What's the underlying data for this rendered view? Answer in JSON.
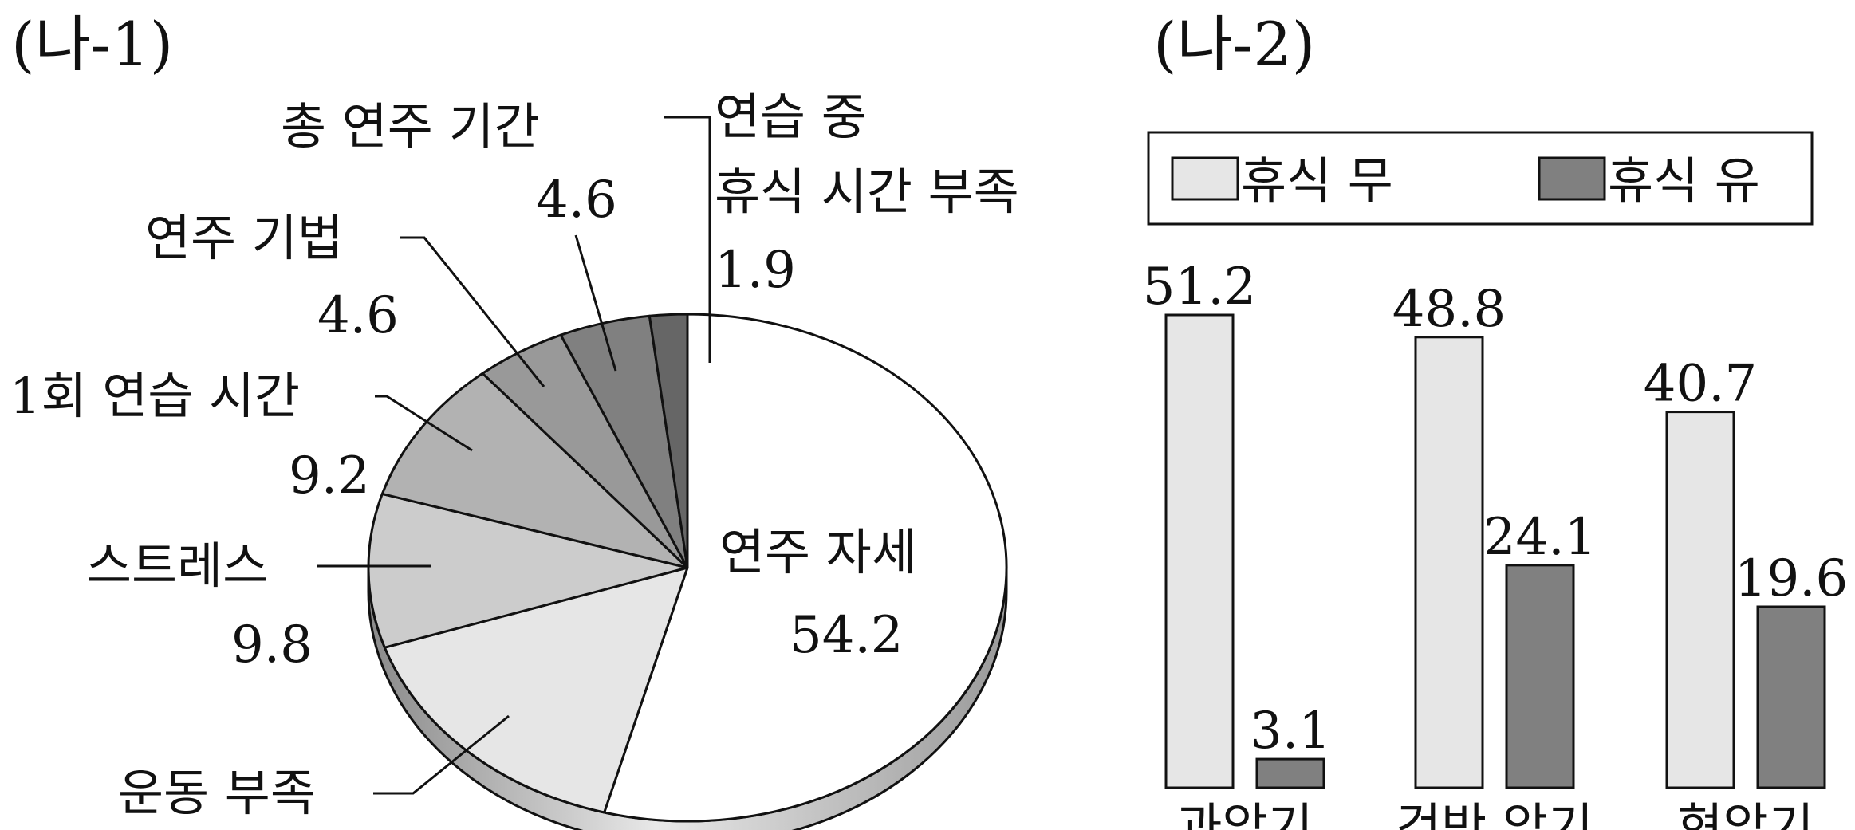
{
  "chart_data": [
    {
      "type": "pie",
      "title": "(나-1)",
      "slices": [
        {
          "label": "연주 자세",
          "value": 54.2,
          "color": "#ffffff"
        },
        {
          "label": "운동 부족",
          "value": 15.7,
          "color": "#e6e6e6"
        },
        {
          "label": "스트레스",
          "value": 9.8,
          "color": "#cccccc"
        },
        {
          "label": "1회 연습 시간",
          "value": 9.2,
          "color": "#b2b2b2"
        },
        {
          "label": "연주 기법",
          "value": 4.6,
          "color": "#999999"
        },
        {
          "label": "총 연주 기간",
          "value": 4.6,
          "color": "#808080"
        },
        {
          "label": "연습 중 휴식 시간 부족",
          "value": 1.9,
          "color": "#666666"
        }
      ],
      "printed_values": [
        "54.2",
        "9.8",
        "9.2",
        "4.6",
        "4.6",
        "1.9"
      ]
    },
    {
      "type": "bar",
      "title": "(나-2)",
      "categories": [
        "과악기",
        "건반 악기",
        "현악기"
      ],
      "series": [
        {
          "name": "휴식 무",
          "values": [
            51.2,
            48.8,
            40.7
          ],
          "color": "#e6e6e6"
        },
        {
          "name": "휴식 유",
          "values": [
            3.1,
            24.1,
            19.6
          ],
          "color": "#808080"
        }
      ],
      "legend_position": "top",
      "ylim": [
        0,
        55
      ],
      "grid": false
    }
  ]
}
